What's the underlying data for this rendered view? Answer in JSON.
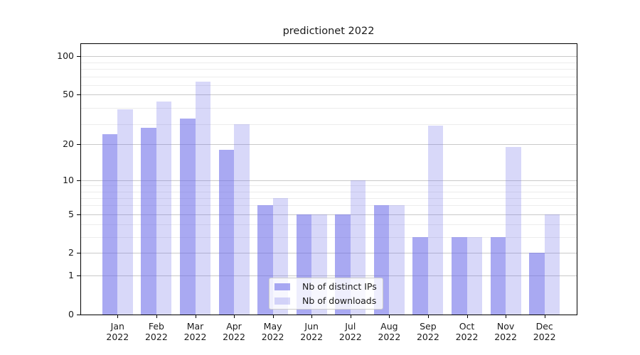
{
  "title": "predictionet 2022",
  "chart_data": {
    "type": "bar",
    "title": "predictionet 2022",
    "yscale": "log10(1+x)",
    "ylim": [
      0,
      126
    ],
    "grid": true,
    "legend_position": "lower center inside plot",
    "categories": [
      "Jan 2022",
      "Feb 2022",
      "Mar 2022",
      "Apr 2022",
      "May 2022",
      "Jun 2022",
      "Jul 2022",
      "Aug 2022",
      "Sep 2022",
      "Oct 2022",
      "Nov 2022",
      "Dec 2022"
    ],
    "series": [
      {
        "name": "Nb of distinct IPs",
        "values": [
          24,
          27,
          32,
          18,
          6,
          5,
          5,
          6,
          3,
          3,
          3,
          2
        ],
        "color": "#6A6AE8",
        "alpha": 0.58
      },
      {
        "name": "Nb of downloads",
        "values": [
          38,
          44,
          63,
          29,
          7,
          5,
          10,
          6,
          28,
          3,
          19,
          5
        ],
        "color": "#6A6AE8",
        "alpha": 0.26
      }
    ],
    "yticks": [
      100,
      50,
      20,
      10,
      5,
      2,
      1,
      0
    ],
    "minor_grid_values": [
      3,
      4,
      6,
      7,
      8,
      9,
      29,
      39,
      59,
      69,
      79,
      89
    ]
  },
  "colors": {
    "background": "#ffffff",
    "axis": "#000000",
    "major_grid": "#c9c9c9",
    "minor_grid": "#ececec",
    "text": "#1a1a1a",
    "bar_base": "#6A6AE8"
  }
}
